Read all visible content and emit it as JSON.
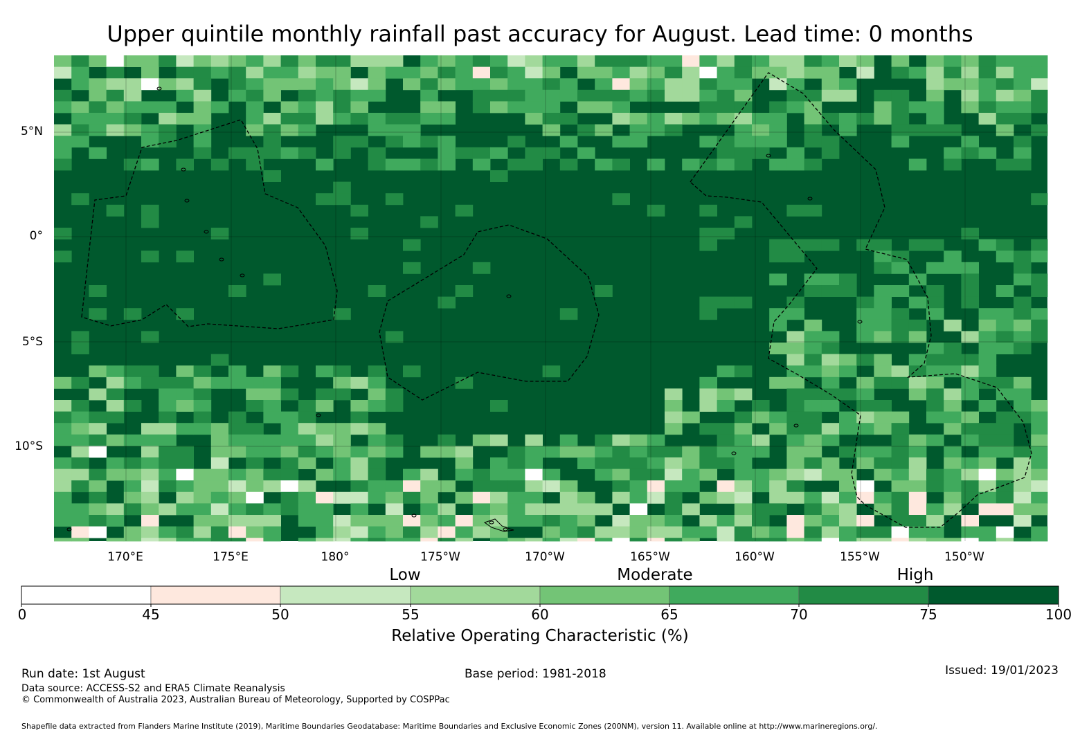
{
  "title": "Upper quintile monthly rainfall past accuracy for August. Lead time: 0 months",
  "map": {
    "lat_labels": [
      "5°N",
      "0°",
      "5°S",
      "10°S"
    ],
    "lon_labels": [
      "170°E",
      "175°E",
      "180°",
      "175°W",
      "170°W",
      "165°W",
      "160°W",
      "155°W",
      "150°W"
    ],
    "extent": {
      "lon_min": 166.6,
      "lon_max": 214.0,
      "lat_min": -14.6,
      "lat_max": 8.6
    },
    "cell_size_deg": 0.83
  },
  "legend": {
    "category_labels": [
      "Low",
      "Moderate",
      "High"
    ],
    "ticks": [
      "0",
      "45",
      "50",
      "55",
      "60",
      "65",
      "70",
      "75",
      "100"
    ],
    "colors": [
      "#ffffff",
      "#fee8de",
      "#c6e8bf",
      "#a2d99b",
      "#73c476",
      "#40aa5d",
      "#228b45",
      "#00592d"
    ],
    "axis_label": "Relative Operating Characteristic (%)"
  },
  "footer": {
    "run_date": "Run date: 1st August",
    "data_source": "Data source: ACCESS-S2 and ERA5 Climate Reanalysis",
    "copyright": "© Commonwealth of Australia 2023, Australian Bureau of Meteorology, Supported by COSPPac",
    "base_period": "Base period: 1981-2018",
    "issued": "Issued: 19/01/2023",
    "shapefile": "Shapefile data extracted from Flanders Marine Institute (2019), Maritime Boundaries Geodatabase: Maritime Boundaries and Exclusive Economic Zones (200NM), version 11. Available online at http://www.marineregions.org/."
  }
}
